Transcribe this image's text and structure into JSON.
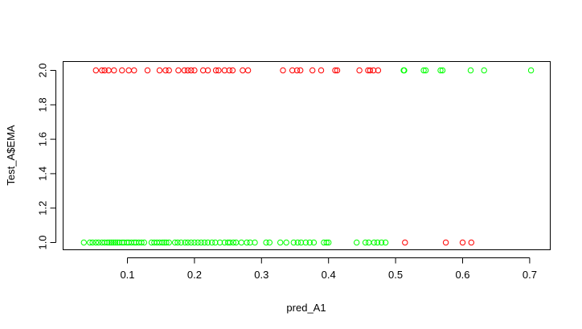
{
  "chart_data": {
    "type": "scatter",
    "title": "",
    "xlabel": "pred_A1",
    "ylabel": "Test_A$EMA",
    "xlim": [
      0.03,
      0.7
    ],
    "ylim": [
      1.0,
      2.0
    ],
    "x_ticks": [
      "0.1",
      "0.2",
      "0.3",
      "0.4",
      "0.5",
      "0.6",
      "0.7"
    ],
    "y_ticks": [
      "1.0",
      "1.2",
      "1.4",
      "1.6",
      "1.8",
      "2.0"
    ],
    "grid": false,
    "legend": "none",
    "series": [
      {
        "name": "green",
        "color": "#00ff00",
        "x": [
          0.035,
          0.044,
          0.048,
          0.053,
          0.057,
          0.062,
          0.066,
          0.07,
          0.073,
          0.076,
          0.079,
          0.082,
          0.085,
          0.088,
          0.092,
          0.095,
          0.099,
          0.102,
          0.106,
          0.11,
          0.113,
          0.117,
          0.121,
          0.125,
          0.136,
          0.14,
          0.144,
          0.148,
          0.152,
          0.155,
          0.158,
          0.162,
          0.171,
          0.175,
          0.18,
          0.186,
          0.19,
          0.195,
          0.2,
          0.205,
          0.21,
          0.215,
          0.22,
          0.226,
          0.231,
          0.238,
          0.245,
          0.25,
          0.253,
          0.258,
          0.262,
          0.27,
          0.278,
          0.283,
          0.29,
          0.307,
          0.312,
          0.328,
          0.337,
          0.348,
          0.354,
          0.359,
          0.366,
          0.372,
          0.378,
          0.393,
          0.397,
          0.4,
          0.442,
          0.455,
          0.46,
          0.468,
          0.473,
          0.479,
          0.485,
          0.512,
          0.513,
          0.542,
          0.545,
          0.567,
          0.57,
          0.612,
          0.632,
          0.702
        ],
        "y": [
          1,
          1,
          1,
          1,
          1,
          1,
          1,
          1,
          1,
          1,
          1,
          1,
          1,
          1,
          1,
          1,
          1,
          1,
          1,
          1,
          1,
          1,
          1,
          1,
          1,
          1,
          1,
          1,
          1,
          1,
          1,
          1,
          1,
          1,
          1,
          1,
          1,
          1,
          1,
          1,
          1,
          1,
          1,
          1,
          1,
          1,
          1,
          1,
          1,
          1,
          1,
          1,
          1,
          1,
          1,
          1,
          1,
          1,
          1,
          1,
          1,
          1,
          1,
          1,
          1,
          1,
          1,
          1,
          1,
          1,
          1,
          1,
          1,
          1,
          1,
          2,
          2,
          2,
          2,
          2,
          2,
          2,
          2,
          2
        ]
      },
      {
        "name": "red",
        "color": "#ff0000",
        "x": [
          0.053,
          0.062,
          0.066,
          0.072,
          0.08,
          0.092,
          0.102,
          0.11,
          0.13,
          0.148,
          0.157,
          0.162,
          0.176,
          0.185,
          0.19,
          0.195,
          0.2,
          0.213,
          0.22,
          0.232,
          0.236,
          0.245,
          0.252,
          0.257,
          0.272,
          0.28,
          0.332,
          0.346,
          0.353,
          0.358,
          0.376,
          0.389,
          0.41,
          0.413,
          0.446,
          0.459,
          0.462,
          0.467,
          0.474,
          0.514,
          0.575,
          0.6,
          0.613
        ],
        "y": [
          2,
          2,
          2,
          2,
          2,
          2,
          2,
          2,
          2,
          2,
          2,
          2,
          2,
          2,
          2,
          2,
          2,
          2,
          2,
          2,
          2,
          2,
          2,
          2,
          2,
          2,
          2,
          2,
          2,
          2,
          2,
          2,
          2,
          2,
          2,
          2,
          2,
          2,
          2,
          1,
          1,
          1,
          1
        ]
      }
    ]
  }
}
